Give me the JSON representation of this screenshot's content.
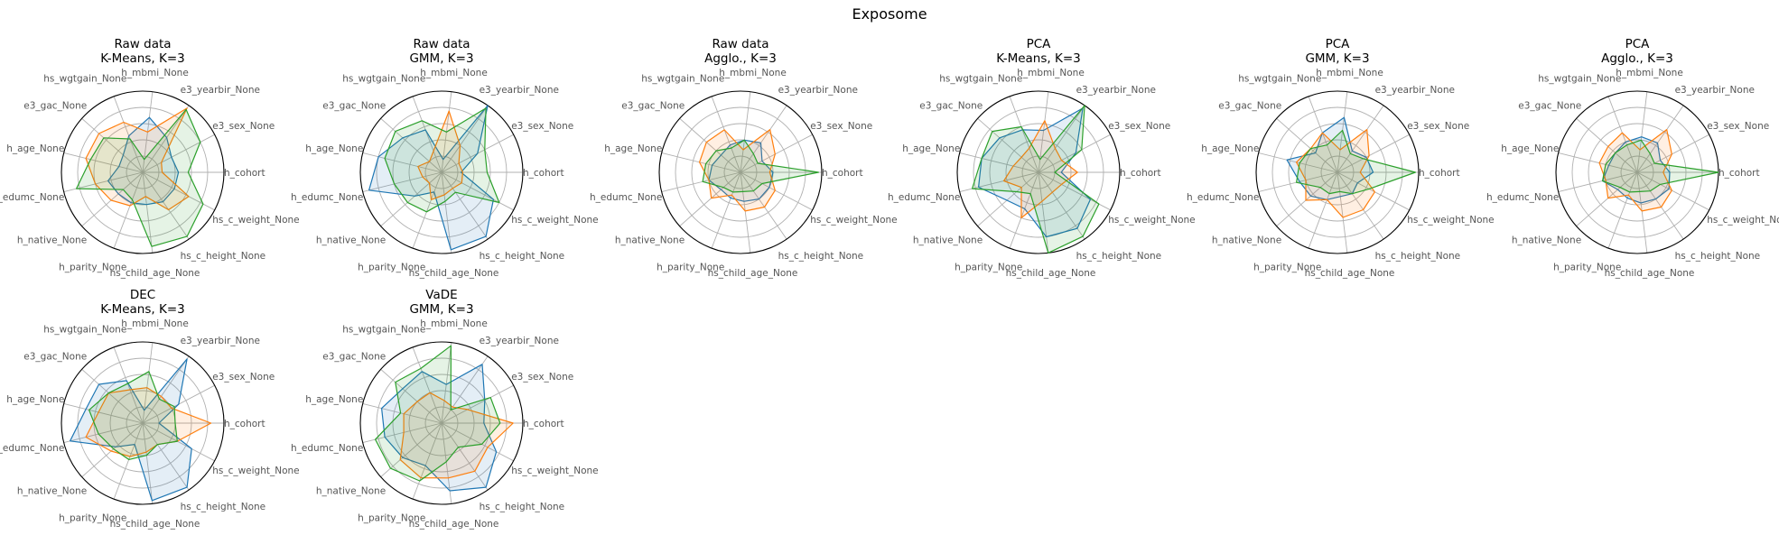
{
  "figure": {
    "title": "Exposome"
  },
  "chart_data": [
    {
      "type": "radar",
      "title_line1": "Raw data",
      "title_line2": "K-Means, K=3",
      "axes": [
        "h_cohort",
        "e3_sex_None",
        "e3_yearbir_None",
        "h_mbmi_None",
        "hs_wgtgain_None",
        "e3_gac_None",
        "h_age_None",
        "h_edumc_None",
        "h_native_None",
        "h_parity_None",
        "hs_child_age_None",
        "hs_c_height_None",
        "hs_c_weight_None"
      ],
      "rlim": [
        0,
        5
      ],
      "rings": [
        1,
        2,
        3,
        4,
        5
      ],
      "series": [
        {
          "color": "#1f77b4",
          "values": [
            2.2,
            2.0,
            2.6,
            3.4,
            2.4,
            1.6,
            1.5,
            2.2,
            2.0,
            2.0,
            2.0,
            2.2,
            2.2
          ]
        },
        {
          "color": "#ff7f0e",
          "values": [
            1.2,
            1.3,
            4.8,
            2.5,
            3.3,
            3.6,
            3.6,
            3.0,
            2.6,
            2.2,
            1.5,
            2.8,
            3.2
          ]
        },
        {
          "color": "#2ca02c",
          "values": [
            2.8,
            4.0,
            4.7,
            0.8,
            2.2,
            3.2,
            3.3,
            4.2,
            1.6,
            1.8,
            4.6,
            4.8,
            4.2
          ]
        }
      ]
    },
    {
      "type": "radar",
      "title_line1": "Raw data",
      "title_line2": "GMM, K=3",
      "axes": [
        "h_cohort",
        "e3_sex_None",
        "e3_yearbir_None",
        "h_mbmi_None",
        "hs_wgtgain_None",
        "e3_gac_None",
        "h_age_None",
        "h_edumc_None",
        "h_native_None",
        "h_parity_None",
        "hs_child_age_None",
        "hs_c_height_None",
        "hs_c_weight_None"
      ],
      "rlim": [
        0,
        5
      ],
      "rings": [
        1,
        2,
        3,
        4,
        5
      ],
      "series": [
        {
          "color": "#1f77b4",
          "values": [
            1.2,
            2.5,
            5.0,
            0.8,
            2.8,
            3.2,
            4.0,
            4.6,
            2.2,
            1.3,
            4.8,
            4.8,
            3.6
          ]
        },
        {
          "color": "#ff7f0e",
          "values": [
            1.3,
            1.2,
            2.0,
            3.8,
            1.4,
            1.0,
            1.5,
            1.2,
            1.0,
            1.8,
            1.4,
            1.2,
            1.4
          ]
        },
        {
          "color": "#2ca02c",
          "values": [
            2.8,
            3.0,
            4.8,
            2.5,
            3.4,
            3.8,
            3.6,
            3.0,
            2.8,
            2.6,
            1.8,
            1.5,
            4.0
          ]
        }
      ]
    },
    {
      "type": "radar",
      "title_line1": "Raw data",
      "title_line2": "Agglo., K=3",
      "axes": [
        "h_cohort",
        "e3_sex_None",
        "e3_yearbir_None",
        "h_mbmi_None",
        "hs_wgtgain_None",
        "e3_gac_None",
        "h_age_None",
        "h_edumc_None",
        "h_native_None",
        "h_parity_None",
        "hs_child_age_None",
        "hs_c_height_None",
        "hs_c_weight_None"
      ],
      "rlim": [
        0,
        5
      ],
      "rings": [
        1,
        2,
        3,
        4,
        5
      ],
      "series": [
        {
          "color": "#1f77b4",
          "values": [
            2.0,
            1.5,
            2.2,
            2.0,
            1.8,
            1.6,
            1.8,
            2.0,
            1.6,
            1.7,
            1.8,
            2.0,
            2.0
          ]
        },
        {
          "color": "#ff7f0e",
          "values": [
            1.8,
            2.4,
            3.2,
            1.4,
            2.8,
            2.8,
            2.6,
            2.0,
            2.4,
            1.5,
            2.4,
            2.6,
            2.4
          ]
        },
        {
          "color": "#2ca02c",
          "values": [
            4.8,
            1.2,
            1.4,
            2.0,
            1.6,
            2.0,
            2.2,
            2.4,
            1.4,
            1.3,
            1.2,
            1.4,
            1.5
          ]
        }
      ]
    },
    {
      "type": "radar",
      "title_line1": "PCA",
      "title_line2": "K-Means, K=3",
      "axes": [
        "h_cohort",
        "e3_sex_None",
        "e3_yearbir_None",
        "h_mbmi_None",
        "hs_wgtgain_None",
        "e3_gac_None",
        "h_age_None",
        "h_edumc_None",
        "h_native_None",
        "h_parity_None",
        "hs_child_age_None",
        "hs_c_height_None",
        "hs_c_weight_None"
      ],
      "rlim": [
        0,
        5
      ],
      "rings": [
        1,
        2,
        3,
        4,
        5
      ],
      "series": [
        {
          "color": "#1f77b4",
          "values": [
            1.4,
            2.6,
            4.8,
            2.6,
            2.8,
            3.2,
            3.6,
            3.8,
            2.6,
            2.4,
            4.0,
            4.2,
            3.6
          ]
        },
        {
          "color": "#ff7f0e",
          "values": [
            2.4,
            1.6,
            1.8,
            3.2,
            1.6,
            1.4,
            1.6,
            2.2,
            1.4,
            3.0,
            1.8,
            1.5,
            1.6
          ]
        },
        {
          "color": "#2ca02c",
          "values": [
            1.0,
            3.0,
            5.0,
            0.8,
            3.0,
            3.8,
            3.6,
            4.2,
            1.8,
            1.4,
            5.0,
            4.8,
            4.2
          ]
        }
      ]
    },
    {
      "type": "radar",
      "title_line1": "PCA",
      "title_line2": "GMM, K=3",
      "axes": [
        "h_cohort",
        "e3_sex_None",
        "e3_yearbir_None",
        "h_mbmi_None",
        "hs_wgtgain_None",
        "e3_gac_None",
        "h_age_None",
        "h_edumc_None",
        "h_native_None",
        "h_parity_None",
        "hs_child_age_None",
        "hs_c_height_None",
        "hs_c_weight_None"
      ],
      "rlim": [
        0,
        5
      ],
      "rings": [
        1,
        2,
        3,
        4,
        5
      ],
      "series": [
        {
          "color": "#1f77b4",
          "values": [
            2.2,
            2.0,
            1.6,
            3.4,
            2.6,
            1.8,
            3.2,
            2.4,
            2.2,
            1.8,
            1.5,
            1.6,
            1.4
          ]
        },
        {
          "color": "#ff7f0e",
          "values": [
            1.4,
            2.2,
            3.2,
            1.4,
            2.6,
            2.2,
            2.6,
            2.0,
            2.6,
            1.8,
            2.8,
            2.8,
            2.6
          ]
        },
        {
          "color": "#2ca02c",
          "values": [
            4.8,
            1.8,
            1.4,
            2.6,
            1.8,
            2.2,
            2.4,
            2.6,
            1.4,
            1.4,
            1.2,
            1.6,
            2.2
          ]
        }
      ]
    },
    {
      "type": "radar",
      "title_line1": "PCA",
      "title_line2": "Agglo., K=3",
      "axes": [
        "h_cohort",
        "e3_sex_None",
        "e3_yearbir_None",
        "h_mbmi_None",
        "hs_wgtgain_None",
        "e3_gac_None",
        "h_age_None",
        "h_edumc_None",
        "h_native_None",
        "h_parity_None",
        "hs_child_age_None",
        "hs_c_height_None",
        "hs_c_weight_None"
      ],
      "rlim": [
        0,
        5
      ],
      "rings": [
        1,
        2,
        3,
        4,
        5
      ],
      "series": [
        {
          "color": "#1f77b4",
          "values": [
            2.0,
            1.6,
            2.2,
            2.2,
            2.0,
            1.8,
            1.8,
            2.2,
            1.6,
            1.7,
            1.9,
            2.0,
            2.2
          ]
        },
        {
          "color": "#ff7f0e",
          "values": [
            1.6,
            2.4,
            3.2,
            1.4,
            2.6,
            2.4,
            2.4,
            2.0,
            2.4,
            1.5,
            2.4,
            2.6,
            2.4
          ]
        },
        {
          "color": "#2ca02c",
          "values": [
            5.0,
            1.2,
            1.4,
            2.0,
            1.8,
            1.8,
            2.0,
            2.2,
            1.4,
            1.3,
            1.2,
            1.4,
            1.6
          ]
        }
      ]
    },
    {
      "type": "radar",
      "title_line1": "DEC",
      "title_line2": "K-Means, K=3",
      "axes": [
        "h_cohort",
        "e3_sex_None",
        "e3_yearbir_None",
        "h_mbmi_None",
        "hs_wgtgain_None",
        "e3_gac_None",
        "h_age_None",
        "h_edumc_None",
        "h_native_None",
        "h_parity_None",
        "hs_child_age_None",
        "hs_c_height_None",
        "hs_c_weight_None"
      ],
      "rlim": [
        0,
        5
      ],
      "rings": [
        1,
        2,
        3,
        4,
        5
      ],
      "series": [
        {
          "color": "#1f77b4",
          "values": [
            1.0,
            2.5,
            4.8,
            0.8,
            2.8,
            3.6,
            3.6,
            4.6,
            2.2,
            1.4,
            4.8,
            4.8,
            3.4
          ]
        },
        {
          "color": "#ff7f0e",
          "values": [
            4.2,
            2.0,
            2.0,
            2.2,
            2.2,
            2.8,
            2.8,
            3.6,
            2.6,
            2.2,
            1.8,
            1.6,
            2.4
          ]
        },
        {
          "color": "#2ca02c",
          "values": [
            2.0,
            2.2,
            1.8,
            3.2,
            2.6,
            2.8,
            3.4,
            2.8,
            2.4,
            2.4,
            2.0,
            1.6,
            2.4
          ]
        }
      ]
    },
    {
      "type": "radar",
      "title_line1": "VaDE",
      "title_line2": "GMM, K=3",
      "axes": [
        "h_cohort",
        "e3_sex_None",
        "e3_yearbir_None",
        "h_mbmi_None",
        "hs_wgtgain_None",
        "e3_gac_None",
        "h_age_None",
        "h_edumc_None",
        "h_native_None",
        "h_parity_None",
        "hs_child_age_None",
        "hs_c_height_None",
        "hs_c_weight_None"
      ],
      "rlim": [
        0,
        5
      ],
      "rings": [
        1,
        2,
        3,
        4,
        5
      ],
      "series": [
        {
          "color": "#1f77b4",
          "values": [
            2.6,
            3.0,
            4.4,
            2.4,
            3.4,
            3.2,
            3.8,
            3.6,
            3.2,
            2.8,
            4.2,
            4.8,
            3.8
          ]
        },
        {
          "color": "#ff7f0e",
          "values": [
            4.4,
            1.8,
            1.2,
            1.4,
            2.0,
            2.0,
            2.4,
            2.4,
            3.4,
            3.6,
            3.4,
            3.6,
            3.2
          ]
        },
        {
          "color": "#2ca02c",
          "values": [
            3.6,
            3.4,
            1.0,
            4.8,
            3.6,
            3.8,
            2.6,
            4.2,
            4.2,
            3.8,
            2.4,
            1.8,
            2.8
          ]
        }
      ]
    }
  ]
}
